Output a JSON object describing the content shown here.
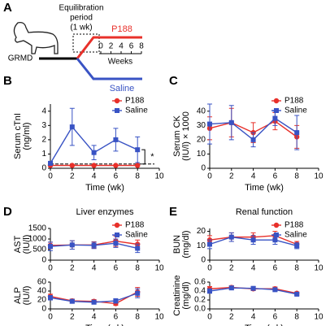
{
  "diagram": {
    "label": "A",
    "subject": "GRMD",
    "period_lines": [
      "Equilibration",
      "period"
    ],
    "period_note": "(1 wk)",
    "treated": "P188",
    "control": "Saline",
    "weeks_label": "Weeks",
    "weeks": [
      0,
      2,
      4,
      6,
      8
    ]
  },
  "chart_data": [
    {
      "type": "line",
      "panel_label": "B",
      "ylabel": [
        "Serum cTnI",
        "(ng/ml)"
      ],
      "xlabel": "Time (wk)",
      "x": [
        0,
        2,
        4,
        6,
        8
      ],
      "xlim": [
        0,
        10
      ],
      "xticks": [
        0,
        2,
        4,
        6,
        8,
        10
      ],
      "ylim": [
        0,
        4.5
      ],
      "yticks": [
        0,
        1,
        2,
        3,
        4
      ],
      "legend": "upper right",
      "refline": 0.3,
      "annotation": "*",
      "series": [
        {
          "name": "P188",
          "color": "#e8302a",
          "marker": "circle",
          "values": [
            0.2,
            0.2,
            0.2,
            0.2,
            0.2
          ],
          "errors": [
            0.05,
            0.05,
            0.05,
            0.05,
            0.05
          ]
        },
        {
          "name": "Saline",
          "color": "#3953c4",
          "marker": "square",
          "values": [
            0.35,
            2.9,
            1.1,
            2.0,
            1.3
          ],
          "errors": [
            0.1,
            1.3,
            0.5,
            0.8,
            0.9
          ]
        }
      ]
    },
    {
      "type": "line",
      "panel_label": "C",
      "ylabel": [
        "Serum CK",
        "(IU/l) × 1000"
      ],
      "xlabel": "Time (wk)",
      "x": [
        0,
        2,
        4,
        6,
        8
      ],
      "xlim": [
        0,
        10
      ],
      "xticks": [
        0,
        2,
        4,
        6,
        8,
        10
      ],
      "ylim": [
        0,
        45
      ],
      "yticks": [
        0,
        10,
        20,
        30,
        40
      ],
      "legend": "upper right",
      "series": [
        {
          "name": "P188",
          "color": "#e8302a",
          "marker": "circle",
          "values": [
            28,
            32,
            25,
            33,
            22
          ],
          "errors": [
            8,
            10,
            7,
            6,
            8
          ]
        },
        {
          "name": "Saline",
          "color": "#3953c4",
          "marker": "square",
          "values": [
            31,
            32,
            20,
            35,
            25
          ],
          "errors": [
            14,
            12,
            5,
            5,
            12
          ]
        }
      ]
    },
    {
      "type": "line",
      "panel_label": "D",
      "panel_title": "Liver enzymes",
      "ylabel": [
        "AST",
        "(IU/l)"
      ],
      "x": [
        0,
        2,
        4,
        6,
        8
      ],
      "xlim": [
        0,
        10
      ],
      "xticks": [
        0,
        2,
        4,
        6,
        8,
        10
      ],
      "ylim": [
        0,
        1500
      ],
      "yticks": [
        0,
        500,
        1000,
        1500
      ],
      "legend": "upper right",
      "series": [
        {
          "name": "P188",
          "color": "#e8302a",
          "marker": "circle",
          "values": [
            700,
            720,
            720,
            900,
            750
          ],
          "errors": [
            150,
            200,
            150,
            250,
            200
          ]
        },
        {
          "name": "Saline",
          "color": "#3953c4",
          "marker": "square",
          "values": [
            650,
            720,
            700,
            800,
            560
          ],
          "errors": [
            200,
            200,
            150,
            200,
            200
          ]
        }
      ]
    },
    {
      "type": "line",
      "ylabel": [
        "ALP",
        "(IU/l)"
      ],
      "xlabel": "Time (wk)",
      "x": [
        0,
        2,
        4,
        6,
        8
      ],
      "xlim": [
        0,
        10
      ],
      "xticks": [
        0,
        2,
        4,
        6,
        8,
        10
      ],
      "ylim": [
        0,
        60
      ],
      "yticks": [
        0,
        20,
        40,
        60
      ],
      "series": [
        {
          "color": "#e8302a",
          "marker": "circle",
          "values": [
            28,
            18,
            17,
            12,
            38
          ],
          "errors": [
            5,
            4,
            4,
            4,
            10
          ]
        },
        {
          "color": "#3953c4",
          "marker": "square",
          "values": [
            25,
            17,
            15,
            18,
            35
          ],
          "errors": [
            5,
            4,
            4,
            5,
            10
          ]
        }
      ]
    },
    {
      "type": "line",
      "panel_label": "E",
      "panel_title": "Renal function",
      "ylabel": [
        "BUN",
        "(mg/dl)"
      ],
      "x": [
        0,
        2,
        4,
        6,
        8
      ],
      "xlim": [
        0,
        10
      ],
      "xticks": [
        0,
        2,
        4,
        6,
        8,
        10
      ],
      "ylim": [
        0,
        22
      ],
      "yticks": [
        0,
        10,
        20
      ],
      "legend": "upper right",
      "series": [
        {
          "name": "P188",
          "color": "#e8302a",
          "marker": "circle",
          "values": [
            14,
            16,
            16,
            17,
            11
          ],
          "errors": [
            3,
            3,
            3,
            3,
            2
          ]
        },
        {
          "name": "Saline",
          "color": "#3953c4",
          "marker": "square",
          "values": [
            11,
            16,
            14,
            14,
            10
          ],
          "errors": [
            3,
            3,
            3,
            3,
            2
          ]
        }
      ]
    },
    {
      "type": "line",
      "ylabel": [
        "Creatinine",
        "(mg/dl)"
      ],
      "xlabel": "Time (wk)",
      "x": [
        0,
        2,
        4,
        6,
        8
      ],
      "xlim": [
        0,
        10
      ],
      "xticks": [
        0,
        2,
        4,
        6,
        8,
        10
      ],
      "ylim": [
        0,
        0.6
      ],
      "yticks": [
        {
          "value": 0,
          "label": "0.0"
        },
        0.2,
        0.4,
        0.6
      ],
      "series": [
        {
          "color": "#e8302a",
          "marker": "circle",
          "values": [
            0.45,
            0.48,
            0.45,
            0.45,
            0.35
          ],
          "errors": [
            0.05,
            0.04,
            0.04,
            0.04,
            0.03
          ]
        },
        {
          "color": "#3953c4",
          "marker": "square",
          "values": [
            0.4,
            0.47,
            0.46,
            0.43,
            0.33
          ],
          "errors": [
            0.05,
            0.04,
            0.04,
            0.04,
            0.03
          ]
        }
      ]
    }
  ]
}
